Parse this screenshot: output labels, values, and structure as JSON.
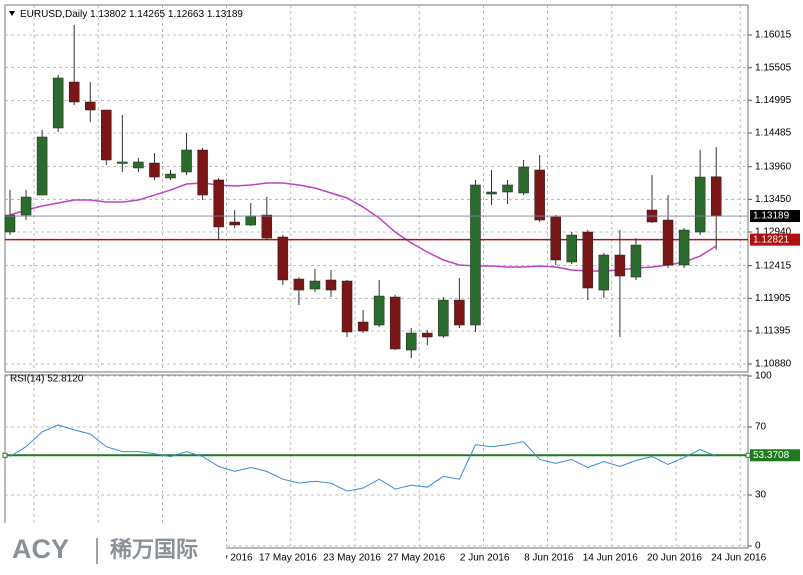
{
  "chart_data": [
    {
      "type": "candlestick",
      "title": "EURUSD,Daily",
      "categories": [
        null,
        null,
        null,
        null,
        null,
        null,
        null,
        null,
        null,
        null,
        null,
        null,
        "y 2016",
        null,
        null,
        null,
        "17 May 2016",
        null,
        null,
        null,
        "23 May 2016",
        null,
        null,
        null,
        "27 May 2016",
        null,
        null,
        null,
        "2 Jun 2016",
        null,
        null,
        null,
        "8 Jun 2016",
        null,
        null,
        null,
        "14 Jun 2016",
        null,
        null,
        null,
        "20 Jun 2016",
        null,
        null,
        null,
        "24 Jun 2016"
      ],
      "open": [
        1.1294,
        1.13205,
        1.13517,
        1.14563,
        1.15281,
        1.14969,
        1.14844,
        1.14017,
        1.13939,
        1.14017,
        1.13783,
        1.13876,
        1.1422,
        1.13752,
        1.13096,
        1.13049,
        1.13205,
        1.12862,
        1.12206,
        1.1205,
        1.12191,
        1.12175,
        1.11535,
        1.11488,
        1.11925,
        1.11098,
        1.11363,
        1.11316,
        1.11878,
        1.11488,
        1.13533,
        1.13564,
        1.13549,
        1.13908,
        1.13174,
        1.12472,
        1.1294,
        1.12034,
        1.12581,
        1.12237,
        1.13283,
        1.13127,
        1.12425,
        1.1294,
        1.13802
      ],
      "high": [
        1.13595,
        1.13595,
        1.14532,
        1.15391,
        1.16171,
        1.15281,
        1.14844,
        1.14766,
        1.14095,
        1.14173,
        1.13908,
        1.14485,
        1.14251,
        1.13783,
        1.13283,
        1.13393,
        1.13486,
        1.12893,
        1.12237,
        1.12362,
        1.12347,
        1.12191,
        1.11722,
        1.12191,
        1.11956,
        1.11441,
        1.1141,
        1.11925,
        1.12222,
        1.13752,
        1.13908,
        1.13752,
        1.14064,
        1.14142,
        1.13205,
        1.1294,
        1.12971,
        1.12612,
        1.12971,
        1.12846,
        1.1383,
        1.13517,
        1.13002,
        1.1422,
        1.14265
      ],
      "low": [
        1.12893,
        1.13127,
        1.13517,
        1.14501,
        1.14922,
        1.14657,
        1.13986,
        1.13876,
        1.13876,
        1.13752,
        1.13752,
        1.1383,
        1.13439,
        1.12815,
        1.13002,
        1.13034,
        1.12815,
        1.12113,
        1.118,
        1.12003,
        1.11925,
        1.11301,
        1.11363,
        1.11457,
        1.11098,
        1.10973,
        1.11176,
        1.11285,
        1.11441,
        1.11379,
        1.13361,
        1.13377,
        1.13517,
        1.13096,
        1.12425,
        1.1244,
        1.11878,
        1.1191,
        1.11301,
        1.12191,
        1.1308,
        1.12378,
        1.12378,
        1.12893,
        1.12663
      ],
      "close": [
        1.13205,
        1.13486,
        1.14423,
        1.15344,
        1.14969,
        1.14844,
        1.14064,
        1.14033,
        1.14033,
        1.13798,
        1.13845,
        1.1422,
        1.13517,
        1.13018,
        1.13049,
        1.1319,
        1.12846,
        1.12191,
        1.12034,
        1.12175,
        1.12034,
        1.11379,
        1.11394,
        1.11941,
        1.11114,
        1.11363,
        1.11301,
        1.11878,
        1.11488,
        1.13674,
        1.13564,
        1.13674,
        1.13955,
        1.13127,
        1.12503,
        1.12893,
        1.12066,
        1.12581,
        1.12253,
        1.12737,
        1.13096,
        1.12425,
        1.12971,
        1.13798,
        1.13189
      ],
      "up_color": "#2b6b2b",
      "down_color": "#7a1616",
      "ma": {
        "color": "#c040c0",
        "values": [
          1.13205,
          1.13283,
          1.13346,
          1.13393,
          1.13439,
          1.13439,
          1.13408,
          1.13408,
          1.13439,
          1.13517,
          1.13595,
          1.13689,
          1.13705,
          1.13674,
          1.13658,
          1.13674,
          1.13705,
          1.13705,
          1.13674,
          1.13627,
          1.13549,
          1.13471,
          1.1333,
          1.13158,
          1.1294,
          1.12768,
          1.12628,
          1.12503,
          1.12425,
          1.12409,
          1.12409,
          1.12394,
          1.12394,
          1.12409,
          1.12394,
          1.12347,
          1.12331,
          1.12331,
          1.12347,
          1.12378,
          1.12394,
          1.12425,
          1.12472,
          1.12565,
          1.12721
        ]
      },
      "level": {
        "value": 1.12821,
        "color": "#b01010"
      },
      "ylim": [
        1.10755,
        1.16483
      ],
      "yticks": [
        {
          "value": 1.1088,
          "label": "1.10880"
        },
        1.11395,
        1.11905,
        1.12415,
        {
          "value": 1.1294,
          "label": "1.12940"
        },
        {
          "value": 1.1345,
          "label": "1.13450"
        },
        {
          "value": 1.1396,
          "label": "1.13960"
        },
        1.14485,
        1.14995,
        1.15505,
        1.16015
      ],
      "grid": true
    },
    {
      "type": "line",
      "title": "RSI(14) 52.8120",
      "color": "#3a8ad6",
      "values": [
        52.6,
        58.4,
        67.1,
        71.2,
        68.3,
        65.9,
        58.4,
        55.5,
        55.5,
        54.3,
        52.6,
        55.5,
        52.6,
        46.8,
        43.9,
        46.2,
        43.9,
        39.3,
        37.0,
        38.1,
        37.0,
        32.3,
        34.1,
        39.3,
        33.5,
        35.8,
        34.6,
        41.0,
        39.3,
        59.6,
        58.4,
        59.6,
        61.3,
        50.9,
        48.6,
        50.9,
        46.2,
        49.7,
        46.8,
        50.3,
        52.6,
        48.0,
        52.0,
        56.7,
        52.812
      ],
      "level": {
        "value": 53.3708,
        "color": "#1f7a1f"
      },
      "ylim": [
        0,
        100
      ],
      "yticks": [
        0,
        30,
        70,
        100
      ],
      "grid": true
    }
  ],
  "logo": {
    "brand": "ACY",
    "name": "稀万国际"
  }
}
